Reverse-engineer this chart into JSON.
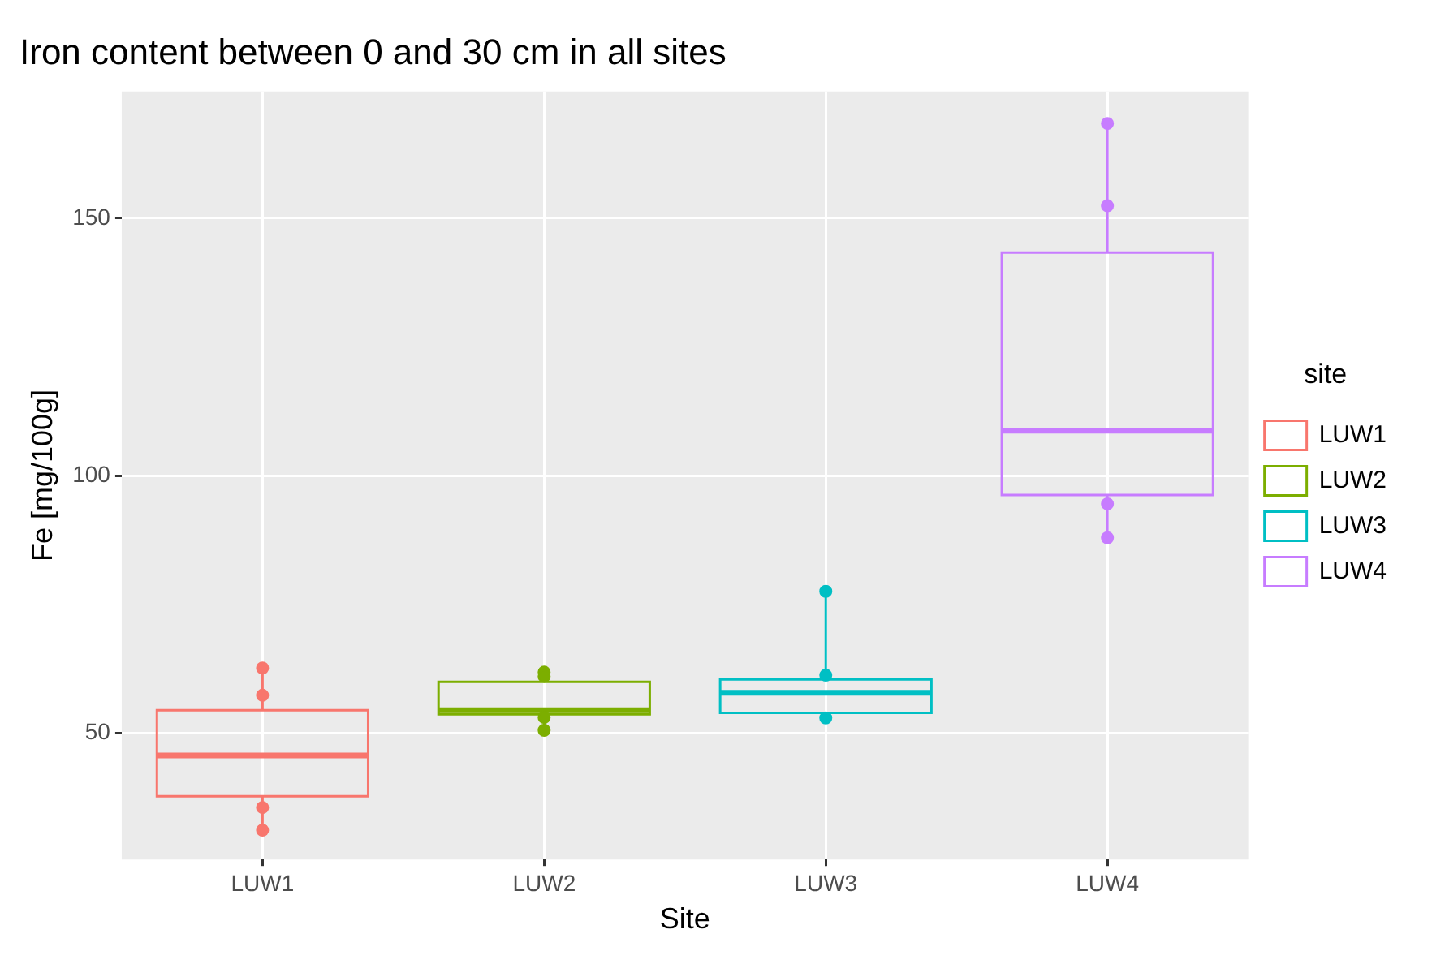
{
  "chart_data": {
    "type": "box",
    "title": "Iron content between 0 and 30 cm in all sites",
    "xlabel": "Site",
    "ylabel": "Fe [mg/100g]",
    "legend_title": "site",
    "legend": "right",
    "grid": true,
    "categories": [
      "LUW1",
      "LUW2",
      "LUW3",
      "LUW4"
    ],
    "series": [
      {
        "name": "LUW1",
        "color": "#f8766d",
        "boxes": [
          {
            "low": 31.1,
            "q1": 37.7,
            "median": 45.6,
            "q3": 54.4,
            "high": 62.6
          },
          null,
          null,
          null
        ]
      },
      {
        "name": "LUW2",
        "color": "#7cae00",
        "boxes": [
          null,
          {
            "low": 50.5,
            "q1": 53.6,
            "median": 54.4,
            "q3": 59.9,
            "high": 61.8
          },
          null,
          null
        ]
      },
      {
        "name": "LUW3",
        "color": "#00bfc4",
        "boxes": [
          null,
          null,
          {
            "low": 52.9,
            "q1": 53.9,
            "median": 57.8,
            "q3": 60.4,
            "high": 77.5
          },
          null
        ]
      },
      {
        "name": "LUW4",
        "color": "#c77cff",
        "boxes": [
          null,
          null,
          null,
          {
            "low": 87.9,
            "q1": 96.2,
            "median": 108.7,
            "q3": 143.3,
            "high": 168.4
          }
        ]
      },
      {
        "type": "scatter",
        "color": "#f8766d",
        "x": [
          "LUW1",
          "LUW1",
          "LUW1",
          "LUW1"
        ],
        "values": [
          62.6,
          57.3,
          35.5,
          31.1
        ],
        "marker": "circle"
      },
      {
        "type": "scatter",
        "color": "#7cae00",
        "x": [
          "LUW2",
          "LUW2",
          "LUW2",
          "LUW2"
        ],
        "values": [
          61.8,
          61.0,
          53.0,
          50.5
        ],
        "marker": "circle"
      },
      {
        "type": "scatter",
        "color": "#00bfc4",
        "x": [
          "LUW3",
          "LUW3",
          "LUW3"
        ],
        "values": [
          77.5,
          61.2,
          52.9
        ],
        "marker": "circle"
      },
      {
        "type": "scatter",
        "color": "#c77cff",
        "x": [
          "LUW4",
          "LUW4",
          "LUW4",
          "LUW4"
        ],
        "values": [
          168.4,
          152.4,
          94.5,
          87.9
        ],
        "marker": "circle"
      }
    ],
    "ylim": [
      25.4,
      174.6
    ],
    "yticks": [
      50,
      100,
      150
    ]
  }
}
